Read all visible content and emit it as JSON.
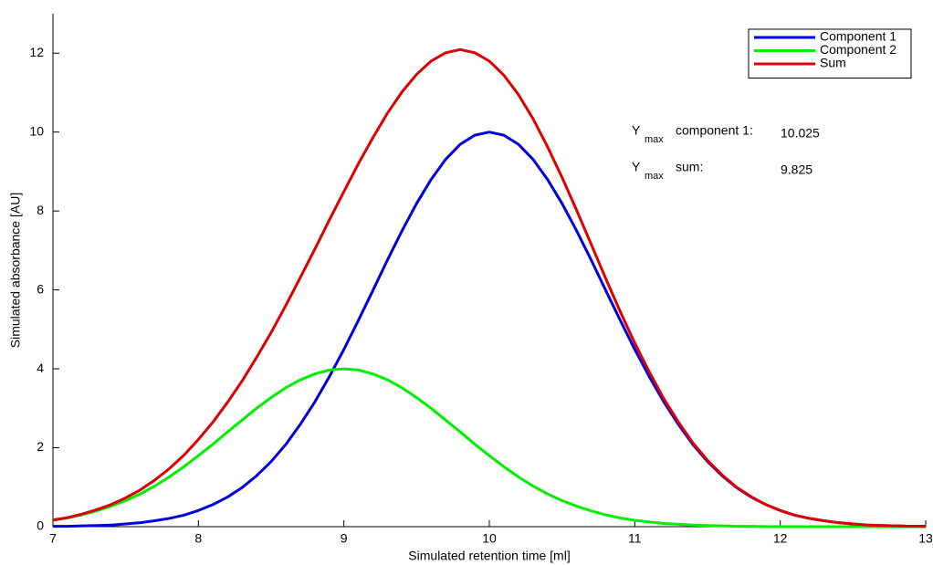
{
  "chart_data": {
    "type": "line",
    "x_label": "Simulated retention time [ml]",
    "y_label": "Simulated absorbance [AU]",
    "xlim": [
      7,
      13
    ],
    "ylim": [
      0,
      13
    ],
    "xticks": [
      7,
      8,
      9,
      10,
      11,
      12,
      13
    ],
    "yticks": [
      0,
      2,
      4,
      6,
      8,
      10,
      12
    ],
    "grid": false,
    "legend": "upper right",
    "x": [
      7.0,
      7.1,
      7.2,
      7.3,
      7.4,
      7.5,
      7.6,
      7.7,
      7.8,
      7.9,
      8.0,
      8.1,
      8.2,
      8.3,
      8.4,
      8.5,
      8.6,
      8.7,
      8.8,
      8.9,
      9.0,
      9.1,
      9.2,
      9.3,
      9.4,
      9.5,
      9.6,
      9.7,
      9.8,
      9.9,
      10.0,
      10.1,
      10.2,
      10.3,
      10.4,
      10.5,
      10.6,
      10.7,
      10.8,
      10.9,
      11.0,
      11.1,
      11.2,
      11.3,
      11.4,
      11.5,
      11.6,
      11.7,
      11.8,
      11.9,
      12.0,
      12.1,
      12.2,
      12.3,
      12.4,
      12.5,
      12.6,
      12.7,
      12.8,
      12.9,
      13.0
    ],
    "series": [
      {
        "name": "Component 1",
        "color": "#0000dd",
        "values": [
          0.01,
          0.01,
          0.02,
          0.03,
          0.04,
          0.07,
          0.1,
          0.15,
          0.21,
          0.29,
          0.41,
          0.56,
          0.75,
          0.99,
          1.29,
          1.65,
          2.08,
          2.59,
          3.16,
          3.8,
          4.49,
          5.23,
          5.99,
          6.76,
          7.5,
          8.19,
          8.8,
          9.31,
          9.69,
          9.92,
          10.0,
          9.92,
          9.69,
          9.31,
          8.8,
          8.19,
          7.5,
          6.76,
          5.99,
          5.23,
          4.49,
          3.8,
          3.16,
          2.59,
          2.08,
          1.65,
          1.29,
          0.99,
          0.75,
          0.56,
          0.41,
          0.29,
          0.21,
          0.15,
          0.1,
          0.07,
          0.04,
          0.03,
          0.02,
          0.01,
          0.01
        ]
      },
      {
        "name": "Component 2",
        "color": "#00ee00",
        "values": [
          0.16,
          0.22,
          0.3,
          0.4,
          0.52,
          0.66,
          0.83,
          1.03,
          1.26,
          1.52,
          1.8,
          2.09,
          2.4,
          2.7,
          3.0,
          3.27,
          3.52,
          3.72,
          3.87,
          3.97,
          4.0,
          3.97,
          3.87,
          3.72,
          3.52,
          3.27,
          3.0,
          2.7,
          2.4,
          2.09,
          1.8,
          1.52,
          1.26,
          1.03,
          0.83,
          0.66,
          0.52,
          0.4,
          0.3,
          0.22,
          0.16,
          0.12,
          0.08,
          0.06,
          0.04,
          0.03,
          0.02,
          0.01,
          0.01,
          0,
          0,
          0,
          0,
          0,
          0,
          0,
          0,
          0,
          0,
          0,
          0
        ]
      },
      {
        "name": "Sum",
        "color": "#dd0000",
        "values": [
          0.17,
          0.23,
          0.32,
          0.43,
          0.56,
          0.73,
          0.93,
          1.18,
          1.47,
          1.81,
          2.21,
          2.65,
          3.15,
          3.69,
          4.29,
          4.92,
          5.6,
          6.31,
          7.03,
          7.77,
          8.49,
          9.2,
          9.86,
          10.48,
          11.02,
          11.46,
          11.8,
          12.01,
          12.09,
          12.01,
          11.8,
          11.44,
          10.95,
          10.34,
          9.63,
          8.85,
          8.02,
          7.16,
          6.29,
          5.45,
          4.65,
          3.92,
          3.24,
          2.65,
          2.12,
          1.68,
          1.31,
          1.0,
          0.76,
          0.56,
          0.41,
          0.29,
          0.21,
          0.15,
          0.1,
          0.07,
          0.04,
          0.03,
          0.02,
          0.01,
          0.01
        ]
      }
    ],
    "annotations": [
      {
        "symbol": "Y",
        "subscript": "max",
        "label": "component 1:",
        "value": "10.025"
      },
      {
        "symbol": "Y",
        "subscript": "max",
        "label": "sum:",
        "value": "9.825"
      }
    ]
  }
}
